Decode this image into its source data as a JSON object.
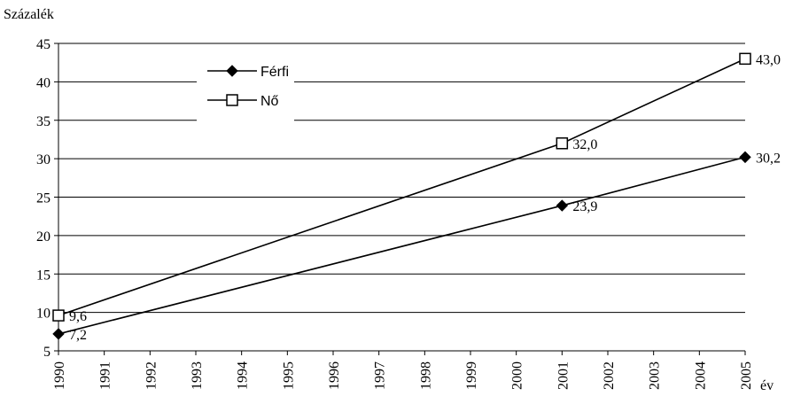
{
  "chart_data": {
    "type": "line",
    "ylabel": "Százalék",
    "xlabel": "év",
    "ylim": [
      5,
      45
    ],
    "yticks": [
      5,
      10,
      15,
      20,
      25,
      30,
      35,
      40,
      45
    ],
    "grid": true,
    "legend_position": "top-left",
    "categories": [
      "1990",
      "1991",
      "1992",
      "1993",
      "1994",
      "1995",
      "1996",
      "1997",
      "1998",
      "1999",
      "2000",
      "2001",
      "2002",
      "2003",
      "2004",
      "2005"
    ],
    "series": [
      {
        "name": "Férfi",
        "marker": "filled-diamond",
        "color": "#000000",
        "points": [
          {
            "x": "1990",
            "y": 7.2,
            "label": "7,2"
          },
          {
            "x": "2001",
            "y": 23.9,
            "label": "23,9"
          },
          {
            "x": "2005",
            "y": 30.2,
            "label": "30,2"
          }
        ]
      },
      {
        "name": "Nő",
        "marker": "open-square",
        "color": "#000000",
        "points": [
          {
            "x": "1990",
            "y": 9.6,
            "label": "9,6"
          },
          {
            "x": "2001",
            "y": 32.0,
            "label": "32,0"
          },
          {
            "x": "2005",
            "y": 43.0,
            "label": "43,0"
          }
        ]
      }
    ]
  }
}
